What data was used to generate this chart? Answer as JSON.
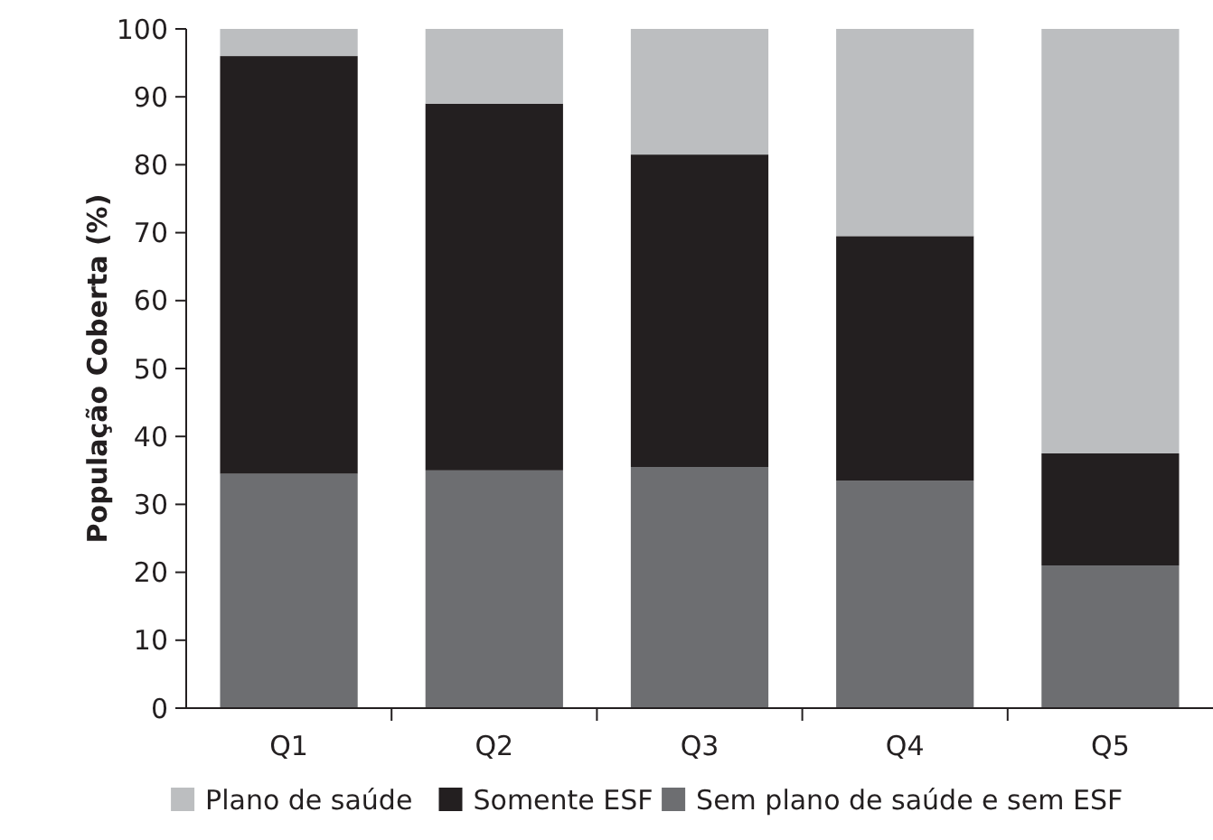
{
  "chart_data": {
    "type": "bar",
    "stacked": true,
    "ylabel": "População Coberta (%)",
    "categories": [
      "Q1",
      "Q2",
      "Q3",
      "Q4",
      "Q5"
    ],
    "series": [
      {
        "name": "Sem plano de saúde e sem ESF",
        "color": "#6d6e71",
        "values": [
          34.5,
          35,
          35.5,
          33.5,
          21
        ]
      },
      {
        "name": "Somente ESF",
        "color": "#231f20",
        "values": [
          61.5,
          54,
          46,
          36,
          16.5
        ]
      },
      {
        "name": "Plano de saúde",
        "color": "#bcbec0",
        "values": [
          4,
          11,
          18.5,
          30.5,
          62.5
        ]
      }
    ],
    "ylim": [
      0,
      100
    ],
    "yticks": [
      0,
      10,
      20,
      30,
      40,
      50,
      60,
      70,
      80,
      90,
      100
    ],
    "grid": false,
    "legend": "bottom"
  }
}
